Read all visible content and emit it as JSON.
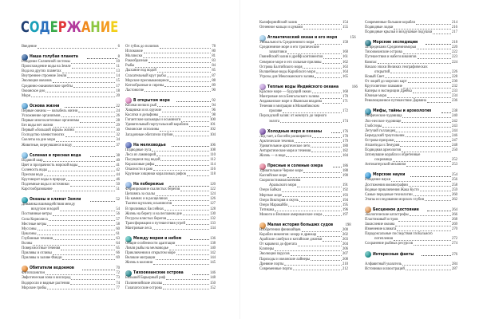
{
  "title": {
    "text": "СОДЕРЖАНИЕ",
    "letter_colors": [
      "#1f3f73",
      "#1aa0b8",
      "#2a6fbd",
      "#3aaa4a",
      "#e2383a",
      "#b23a9c",
      "#f08a1e",
      "#8cc63f",
      "#f39a1e",
      "#f2cf1a"
    ]
  },
  "columns": [
    [
      {
        "type": "item",
        "text": "Введение",
        "page": "6"
      },
      {
        "type": "section",
        "text": "Наша голубая планета",
        "page": "8",
        "icon_color": "#2f5f9e"
      },
      {
        "type": "item",
        "text": "Рождение Солнечной системы",
        "page": "10"
      },
      {
        "type": "item",
        "text": "Происхождение воды на Земле",
        "page": "11"
      },
      {
        "type": "item",
        "text": "Вода на других планетах",
        "page": "13"
      },
      {
        "type": "item",
        "text": "Внутреннее строение Земли",
        "page": "14"
      },
      {
        "type": "item",
        "text": "Эволюция океанов",
        "page": "15"
      },
      {
        "type": "item",
        "text": "Срединно-океанические хребты",
        "page": "17"
      },
      {
        "type": "item",
        "text": "Океанское дно",
        "page": "18"
      },
      {
        "type": "item",
        "text": "Моря",
        "page": "20"
      },
      {
        "type": "section",
        "text": "Основа жизни",
        "page": "22",
        "icon_color": "#5aa9df"
      },
      {
        "type": "item",
        "text": "Первые океаны — колыбель жизни",
        "page": "24"
      },
      {
        "type": "item",
        "text": "Усложнение организмов",
        "page": "26"
      },
      {
        "type": "item",
        "text": "Первые многоклеточные организмы",
        "page": "28"
      },
      {
        "type": "item",
        "text": "Без воды нет жизни",
        "page": "29"
      },
      {
        "type": "item",
        "text": "Первый «большой взрыв» жизни",
        "page": "30"
      },
      {
        "type": "item",
        "text": "Господство членистоногих",
        "page": "32"
      },
      {
        "type": "item",
        "text": "Скелеты на дне моря",
        "page": "34"
      },
      {
        "type": "item",
        "text": "Животные, вернувшиеся в воду",
        "page": "37"
      },
      {
        "type": "section",
        "text": "Соленая и пресная вода",
        "page": "38",
        "icon_color": "#7cc0ec"
      },
      {
        "type": "item",
        "text": "Водяной шар",
        "page": "40"
      },
      {
        "type": "item",
        "text": "Цвет и прозрачность морской воды",
        "page": "41"
      },
      {
        "type": "item",
        "text": "Соленость воды",
        "page": "42"
      },
      {
        "type": "item",
        "text": "Пресная вода",
        "page": "44"
      },
      {
        "type": "item",
        "text": "Круговорот воды в природе",
        "page": "46"
      },
      {
        "type": "item",
        "text": "Подземные воды и источники",
        "page": "50"
      },
      {
        "type": "item",
        "text": "Карстообразование",
        "page": "51"
      },
      {
        "type": "section",
        "text": "Океаны и климат Земли",
        "page": "52",
        "icon_color": "#1fa3b5"
      },
      {
        "type": "item",
        "text": "Динамика взаимодействия между",
        "cont": "воздухом и водой",
        "page": "54"
      },
      {
        "type": "item",
        "text": "Постоянные ветры",
        "page": "56"
      },
      {
        "type": "item",
        "text": "Сила Кориолиса",
        "page": "57"
      },
      {
        "type": "item",
        "text": "Местные ветры",
        "page": "58"
      },
      {
        "type": "item",
        "text": "Муссоны",
        "page": "60"
      },
      {
        "type": "item",
        "text": "Циклоны",
        "page": "61"
      },
      {
        "type": "item",
        "text": "Глубинные течения",
        "page": "63"
      },
      {
        "type": "item",
        "text": "Волны",
        "page": "64"
      },
      {
        "type": "item",
        "text": "Поверхностные течения",
        "page": "65"
      },
      {
        "type": "item",
        "text": "Приливы и отливы",
        "page": "66"
      },
      {
        "type": "item",
        "text": "Приливы в заливе Фанди",
        "page": "69"
      },
      {
        "type": "section",
        "text": "Обитатели водоемов",
        "page": "70",
        "icon_color": "#f0923a"
      },
      {
        "type": "item",
        "text": "Фитопланктон",
        "page": "72"
      },
      {
        "type": "item",
        "text": "Эвфотическая зона и кислород",
        "page": "73"
      },
      {
        "type": "item",
        "text": "Водоросли и водные растения",
        "page": "74"
      },
      {
        "type": "item",
        "text": "Морские грибы",
        "page": "77"
      }
    ],
    [
      {
        "type": "item",
        "text": "От губок до полипов",
        "page": "78"
      },
      {
        "type": "item",
        "text": "Иглокожие",
        "page": "80"
      },
      {
        "type": "item",
        "text": "Моллюски",
        "page": "81"
      },
      {
        "type": "item",
        "text": "Ракообразные",
        "page": "83"
      },
      {
        "type": "item",
        "text": "Рыбы",
        "page": "84"
      },
      {
        "type": "item",
        "text": "Дыхание под водой",
        "page": "85"
      },
      {
        "type": "item",
        "text": "Спасательный круг рыбы",
        "page": "87"
      },
      {
        "type": "item",
        "text": "Морские пресмыкающиеся",
        "page": "88"
      },
      {
        "type": "item",
        "text": "Китообразные и сирены",
        "page": "89"
      },
      {
        "type": "item",
        "text": "Ластоногие",
        "page": "90"
      },
      {
        "type": "section",
        "text": "В открытом море",
        "page": "92",
        "icon_color": "#e58fc8"
      },
      {
        "type": "item",
        "text": "Косяки мелких рыб",
        "page": "94"
      },
      {
        "type": "item",
        "text": "Хищники и их оружие",
        "page": "96"
      },
      {
        "type": "item",
        "text": "Косатки и дельфины",
        "page": "98"
      },
      {
        "type": "item",
        "text": "Гигантские кальмары и осьминоги",
        "page": "100"
      },
      {
        "type": "item",
        "text": "Удивительный португальский кораблик",
        "page": "101"
      },
      {
        "type": "item",
        "text": "Океанские исполины",
        "page": "102"
      },
      {
        "type": "item",
        "text": "Загадочные обитатели глубин",
        "page": "104"
      },
      {
        "type": "section",
        "text": "На мелководье",
        "page": "106",
        "icon_color": "#5a6fc0"
      },
      {
        "type": "item",
        "text": "Подводные луга",
        "page": "108"
      },
      {
        "type": "item",
        "text": "Леса из ламинарий",
        "page": "110"
      },
      {
        "type": "item",
        "text": "Пасущиеся под водой",
        "page": "112"
      },
      {
        "type": "item",
        "text": "Коралловые рифы",
        "page": "114"
      },
      {
        "type": "item",
        "text": "Опасности в раю",
        "page": "116"
      },
      {
        "type": "item",
        "text": "Крупные хищники коралловых рифов",
        "page": "118"
      },
      {
        "type": "section",
        "text": "На побережье",
        "page": "120",
        "icon_color": "#8ab4e8"
      },
      {
        "type": "item",
        "text": "Формирование скалистых берегов",
        "page": "122"
      },
      {
        "type": "item",
        "text": "Цепляясь за скалы",
        "page": "124"
      },
      {
        "type": "item",
        "text": "На камнях и в расщелинах",
        "page": "126"
      },
      {
        "type": "item",
        "text": "Тысячи щупалец осьминогов",
        "page": "127"
      },
      {
        "type": "item",
        "text": "В приливных бассейнах",
        "page": "128"
      },
      {
        "type": "item",
        "text": "Жизнь на берегу и на песчаном дне",
        "page": "130"
      },
      {
        "type": "item",
        "text": "Ресурсы илистых берегов",
        "page": "132"
      },
      {
        "type": "item",
        "text": "Трансформации и путешествия угрей",
        "page": "133"
      },
      {
        "type": "item",
        "text": "Мангровые леса",
        "page": "134"
      },
      {
        "type": "section",
        "text": "Между морем и небом",
        "page": "136",
        "icon_color": "#3fb3b0"
      },
      {
        "type": "item",
        "text": "Общие особенности адаптации",
        "page": "138"
      },
      {
        "type": "item",
        "text": "Ловля рыбы на мелководье",
        "page": "140"
      },
      {
        "type": "item",
        "text": "Приключения в открытом море",
        "page": "142"
      },
      {
        "type": "item",
        "text": "Великие миграции",
        "page": "144"
      },
      {
        "type": "item",
        "text": "Жизнь в колонии",
        "page": "145"
      },
      {
        "type": "section",
        "text": "Тихоокеанские острова",
        "page": "146",
        "icon_color": "#2a8f96"
      },
      {
        "type": "item",
        "text": "Большой Барьерный риф",
        "page": "148"
      },
      {
        "type": "item",
        "text": "Полинезийские атоллы",
        "page": "150"
      },
      {
        "type": "item",
        "text": "Галапагосские острова",
        "page": "152"
      }
    ],
    [
      {
        "type": "item",
        "text": "Калифорнийский залив",
        "page": "154"
      },
      {
        "type": "item",
        "text": "Огненное кольцо и цунами",
        "page": "155"
      },
      {
        "type": "section",
        "text": "Атлантический океан и его моря",
        "page": "156",
        "icon_color": "#9fd0f0"
      },
      {
        "type": "item",
        "text": "Уникальность Средиземного моря",
        "page": "158"
      },
      {
        "type": "item",
        "text": "Средиземное море и его тропические",
        "cont": "захватчики",
        "page": "160"
      },
      {
        "type": "item",
        "text": "Гвинейский залив и дрейф континентов",
        "page": "161"
      },
      {
        "type": "item",
        "text": "Северное море и его сильные приливы",
        "page": "162"
      },
      {
        "type": "item",
        "text": "Острова Балтийского моря",
        "page": "163"
      },
      {
        "type": "item",
        "text": "Волшебные воды Карибского моря",
        "page": "164"
      },
      {
        "type": "item",
        "text": "Угрозы для Мексиканского залива",
        "page": "165"
      },
      {
        "type": "section",
        "text": "Теплые воды Индийского океана",
        "page": "166",
        "icon_color": "#c49ee0"
      },
      {
        "type": "item",
        "text": "Красное море — будущий океан",
        "page": "168"
      },
      {
        "type": "item",
        "text": "Мангровые леса Бенгальского залива",
        "page": "170"
      },
      {
        "type": "item",
        "text": "Андаманское море и Яванская впадина",
        "page": "171"
      },
      {
        "type": "item",
        "text": "Течения и миграции в Мозамбикском",
        "cont": "проливе",
        "page": "172"
      },
      {
        "type": "item",
        "text": "Персидский залив: от жемчуга до черного",
        "cont": "золота",
        "page": "174"
      },
      {
        "type": "section",
        "text": "Холодные моря и океаны",
        "page": "176",
        "icon_color": "#8a5fb8"
      },
      {
        "type": "item",
        "text": "Лед тает, а бассейн расширяется",
        "page": "178"
      },
      {
        "type": "item",
        "text": "Арктические течения",
        "page": "179"
      },
      {
        "type": "item",
        "text": "Удивительное арктическое лето",
        "page": "180"
      },
      {
        "type": "item",
        "text": "Антарктические моря и течения",
        "page": "182"
      },
      {
        "type": "item",
        "text": "Жизнь — в воде",
        "page": "184"
      },
      {
        "type": "section",
        "text": "Пресные и соленые озера",
        "page": "186",
        "icon_color": "#e8809a"
      },
      {
        "type": "item",
        "text": "Удивительное Черное море",
        "page": "188"
      },
      {
        "type": "item",
        "text": "Каспийское море",
        "page": "190"
      },
      {
        "type": "item",
        "text": "Скоропостижная кончина",
        "cont": "Аральского моря",
        "page": "191"
      },
      {
        "type": "item",
        "text": "Озеро Байкал",
        "page": "192"
      },
      {
        "type": "item",
        "text": "Мертвое море",
        "page": "193"
      },
      {
        "type": "item",
        "text": "Озеро Виктория и окунь",
        "page": "194"
      },
      {
        "type": "item",
        "text": "Озеро Маракайбо",
        "page": "195"
      },
      {
        "type": "item",
        "text": "Титикака",
        "page": "196"
      },
      {
        "type": "item",
        "text": "Миноги и Великие американские озера",
        "page": "197"
      },
      {
        "type": "section",
        "text": "Малая история больших судов",
        "page": "198",
        "icon_color": "#f0a050"
      },
      {
        "type": "item",
        "text": "Изобретения финикийцев",
        "page": "200"
      },
      {
        "type": "item",
        "text": "Корабли викингов: кнорр и драккар",
        "page": "202"
      },
      {
        "type": "item",
        "text": "Арабские самбуки и китайские джонки",
        "page": "203"
      },
      {
        "type": "item",
        "text": "От каравелл до фрегата",
        "page": "204"
      },
      {
        "type": "item",
        "text": "Клиперы",
        "page": "206"
      },
      {
        "type": "item",
        "text": "Эволюция парусов",
        "page": "207"
      },
      {
        "type": "item",
        "text": "Пароходы и океанские лайнеры",
        "page": "208"
      },
      {
        "type": "item",
        "text": "Древние порты",
        "page": "210"
      },
      {
        "type": "item",
        "text": "Современные порты",
        "page": "212"
      }
    ],
    [
      {
        "type": "item",
        "text": "Современные большие корабли",
        "page": "214"
      },
      {
        "type": "item",
        "text": "Подводные лодки",
        "page": "216"
      },
      {
        "type": "item",
        "text": "Подводные крылья и воздушные подушки",
        "page": "217"
      },
      {
        "type": "section",
        "text": "Морские экспедиции",
        "page": "218",
        "icon_color": "#2a7f8f"
      },
      {
        "type": "item",
        "text": "За пределами Средиземноморья",
        "page": "220"
      },
      {
        "type": "item",
        "text": "Тихоокеанские острова",
        "page": "222"
      },
      {
        "type": "item",
        "text": "Путешествия и набеги викингов",
        "page": "223"
      },
      {
        "type": "item",
        "text": "Компас",
        "page": "224"
      },
      {
        "type": "item",
        "text": "Начало эпохи Великих географических",
        "cont": "открытий",
        "page": "226"
      },
      {
        "type": "item",
        "text": "Новый Свет",
        "page": "228"
      },
      {
        "type": "item",
        "text": "От лоций до морских карт",
        "page": "230"
      },
      {
        "type": "item",
        "text": "Кругосветное плавание",
        "page": "232"
      },
      {
        "type": "item",
        "text": "Каперы и экспедиции Дрейка",
        "page": "233"
      },
      {
        "type": "item",
        "text": "Южные моря",
        "page": "234"
      },
      {
        "type": "item",
        "text": "Революционное путешествие Дарвина",
        "page": "236"
      },
      {
        "type": "section",
        "text": "Мифы, тайны и археология",
        "page": "238",
        "icon_color": "#3a9ab8"
      },
      {
        "type": "item",
        "text": "Мифические чудовища",
        "page": "240"
      },
      {
        "type": "item",
        "text": "Лох-несское чудовище",
        "page": "242"
      },
      {
        "type": "item",
        "text": "Глобстеры",
        "page": "243"
      },
      {
        "type": "item",
        "text": "Летучий голландец",
        "page": "244"
      },
      {
        "type": "item",
        "text": "Бермудский треугольник",
        "page": "246"
      },
      {
        "type": "item",
        "text": "Острова-призраки",
        "page": "247"
      },
      {
        "type": "item",
        "text": "Атлантида и Лемурия",
        "page": "248"
      },
      {
        "type": "item",
        "text": "Подводная археология",
        "page": "250"
      },
      {
        "type": "item",
        "text": "Затонувшие корабли и обретенные",
        "cont": "сокровища",
        "page": "252"
      },
      {
        "type": "item",
        "text": "Антикитерский механизм",
        "page": "253"
      },
      {
        "type": "section",
        "text": "Морские науки",
        "page": "254",
        "icon_color": "#3aa0e0"
      },
      {
        "type": "item",
        "text": "Рождение науки",
        "page": "256"
      },
      {
        "type": "item",
        "text": "Достижения океанографии",
        "page": "258"
      },
      {
        "type": "item",
        "text": "Водные приключения Жака Кусто",
        "page": "259"
      },
      {
        "type": "item",
        "text": "Самые передовые технологии",
        "page": "260"
      },
      {
        "type": "item",
        "text": "Этапы исследования морских глубин",
        "page": "262"
      },
      {
        "type": "section",
        "text": "Бесценное достояние",
        "page": "264",
        "icon_color": "#e8a060"
      },
      {
        "type": "item",
        "text": "Экологические катастрофы",
        "page": "266"
      },
      {
        "type": "item",
        "text": "Пластиковый остров",
        "page": "268"
      },
      {
        "type": "item",
        "text": "Закисление океана",
        "page": "269"
      },
      {
        "type": "item",
        "text": "Изменение климата",
        "page": "270"
      },
      {
        "type": "item",
        "text": "Парадоксальные последствия глобального",
        "cont": "потепления",
        "page": "272"
      },
      {
        "type": "item",
        "text": "Сохранение рыбных ресурсов",
        "page": "274"
      },
      {
        "type": "section",
        "text": "Интересные факты",
        "page": "276",
        "icon_color": "#2aa3a0"
      },
      {
        "type": "gap"
      },
      {
        "type": "item",
        "text": "Алфавитный указатель",
        "page": "284"
      },
      {
        "type": "item",
        "text": "Источники иллюстраций",
        "page": "287"
      }
    ]
  ]
}
